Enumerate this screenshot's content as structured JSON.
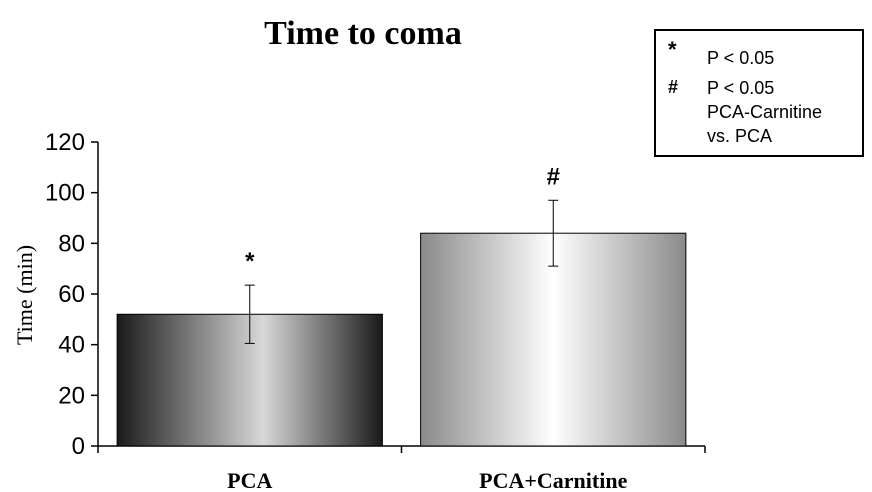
{
  "chart_data": {
    "type": "bar",
    "title": "Time to coma",
    "xlabel": "",
    "ylabel": "Time (min)",
    "ylim": [
      0,
      120
    ],
    "yticks": [
      0,
      20,
      40,
      60,
      80,
      100,
      120
    ],
    "categories": [
      "PCA",
      "PCA+Carnitine"
    ],
    "values": [
      52,
      84
    ],
    "error": [
      11.5,
      13
    ],
    "annotations": [
      "*",
      "#"
    ],
    "grid": false,
    "legend_box": {
      "entries": [
        {
          "symbol": "*",
          "text": "P < 0.05"
        },
        {
          "symbol": "#",
          "text": "P < 0.05",
          "text2": "PCA-Carnitine",
          "text3": "vs. PCA"
        }
      ]
    }
  }
}
